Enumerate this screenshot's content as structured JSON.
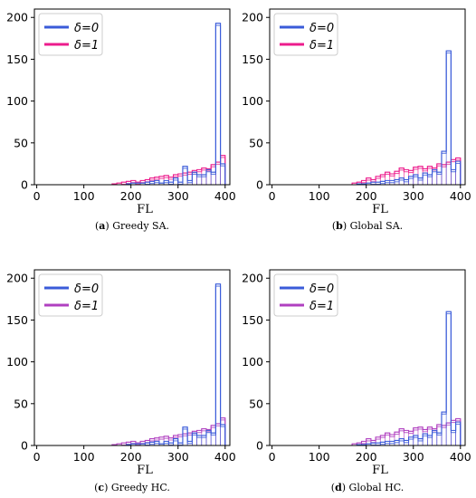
{
  "colors": {
    "delta0": "#3a5bd9",
    "delta1": "#ec1c8c",
    "delta1_hc": "#b040c0"
  },
  "legend": [
    "δ=0",
    "δ=1"
  ],
  "chart_data": [
    {
      "type": "bar",
      "subtype": "step-histogram",
      "caption_label": "(a)",
      "caption_text": "Greedy SA.",
      "xlabel": "FL",
      "xlim": [
        -5,
        410
      ],
      "ylim": [
        0,
        210
      ],
      "xticks": [
        0,
        100,
        200,
        300,
        400
      ],
      "yticks": [
        0,
        50,
        100,
        150,
        200
      ],
      "legend_position": "upper-left",
      "bin_edges": [
        160,
        170,
        180,
        190,
        200,
        210,
        220,
        230,
        240,
        250,
        260,
        270,
        280,
        290,
        300,
        310,
        320,
        330,
        340,
        350,
        360,
        370,
        380,
        390,
        400
      ],
      "series": [
        {
          "name": "δ=0",
          "values": [
            0,
            0,
            0,
            1,
            2,
            2,
            2,
            3,
            4,
            5,
            2,
            5,
            3,
            8,
            3,
            22,
            5,
            15,
            12,
            12,
            18,
            15,
            193,
            25
          ]
        },
        {
          "name": "δ=1",
          "values": [
            1,
            2,
            3,
            4,
            5,
            3,
            5,
            6,
            8,
            9,
            10,
            11,
            9,
            12,
            13,
            14,
            15,
            17,
            18,
            20,
            19,
            24,
            27,
            35
          ]
        }
      ]
    },
    {
      "type": "bar",
      "subtype": "step-histogram",
      "caption_label": "(b)",
      "caption_text": "Global SA.",
      "xlabel": "FL",
      "xlim": [
        -5,
        410
      ],
      "ylim": [
        0,
        210
      ],
      "xticks": [
        0,
        100,
        200,
        300,
        400
      ],
      "yticks": [
        0,
        50,
        100,
        150,
        200
      ],
      "legend_position": "upper-left",
      "bin_edges": [
        170,
        180,
        190,
        200,
        210,
        220,
        230,
        240,
        250,
        260,
        270,
        280,
        290,
        300,
        310,
        320,
        330,
        340,
        350,
        360,
        370,
        380,
        390,
        400
      ],
      "series": [
        {
          "name": "δ=0",
          "values": [
            0,
            1,
            1,
            2,
            3,
            3,
            4,
            5,
            5,
            6,
            8,
            6,
            10,
            12,
            8,
            14,
            12,
            18,
            15,
            40,
            160,
            18,
            28
          ]
        },
        {
          "name": "δ=1",
          "values": [
            2,
            3,
            5,
            8,
            6,
            10,
            12,
            15,
            13,
            16,
            20,
            18,
            17,
            21,
            22,
            19,
            22,
            20,
            25,
            24,
            27,
            30,
            32
          ]
        }
      ]
    },
    {
      "type": "bar",
      "subtype": "step-histogram",
      "caption_label": "(c)",
      "caption_text": "Greedy HC.",
      "xlabel": "FL",
      "xlim": [
        -5,
        410
      ],
      "ylim": [
        0,
        210
      ],
      "xticks": [
        0,
        100,
        200,
        300,
        400
      ],
      "yticks": [
        0,
        50,
        100,
        150,
        200
      ],
      "legend_position": "upper-left",
      "bin_edges": [
        160,
        170,
        180,
        190,
        200,
        210,
        220,
        230,
        240,
        250,
        260,
        270,
        280,
        290,
        300,
        310,
        320,
        330,
        340,
        350,
        360,
        370,
        380,
        390,
        400
      ],
      "series": [
        {
          "name": "δ=0",
          "values": [
            0,
            0,
            0,
            1,
            2,
            2,
            2,
            3,
            4,
            5,
            2,
            5,
            3,
            8,
            3,
            22,
            5,
            15,
            12,
            12,
            18,
            15,
            193,
            25
          ]
        },
        {
          "name": "δ=1",
          "values": [
            1,
            2,
            3,
            4,
            5,
            3,
            5,
            6,
            8,
            9,
            10,
            11,
            9,
            12,
            13,
            14,
            15,
            17,
            18,
            20,
            19,
            24,
            26,
            33
          ]
        }
      ]
    },
    {
      "type": "bar",
      "subtype": "step-histogram",
      "caption_label": "(d)",
      "caption_text": "Global HC.",
      "xlabel": "FL",
      "xlim": [
        -5,
        410
      ],
      "ylim": [
        0,
        210
      ],
      "xticks": [
        0,
        100,
        200,
        300,
        400
      ],
      "yticks": [
        0,
        50,
        100,
        150,
        200
      ],
      "legend_position": "upper-left",
      "bin_edges": [
        170,
        180,
        190,
        200,
        210,
        220,
        230,
        240,
        250,
        260,
        270,
        280,
        290,
        300,
        310,
        320,
        330,
        340,
        350,
        360,
        370,
        380,
        390,
        400
      ],
      "series": [
        {
          "name": "δ=0",
          "values": [
            0,
            1,
            1,
            2,
            3,
            3,
            4,
            5,
            5,
            6,
            8,
            6,
            10,
            12,
            8,
            14,
            12,
            18,
            15,
            40,
            160,
            18,
            28
          ]
        },
        {
          "name": "δ=1",
          "values": [
            2,
            3,
            5,
            8,
            6,
            10,
            12,
            15,
            13,
            16,
            20,
            18,
            17,
            21,
            22,
            19,
            22,
            20,
            25,
            24,
            27,
            30,
            32
          ]
        }
      ]
    }
  ]
}
